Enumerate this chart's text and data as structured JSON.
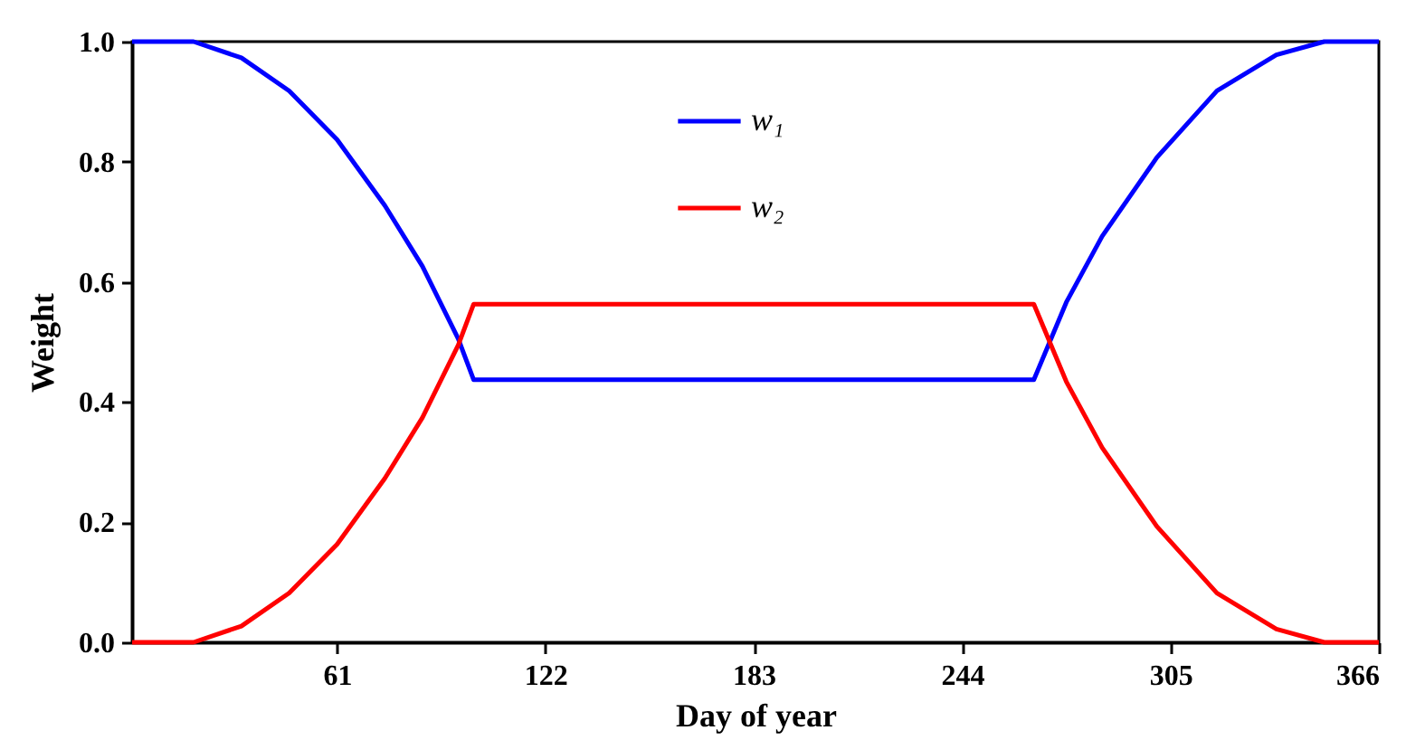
{
  "chart_data": {
    "type": "line",
    "xlabel": "Day of year",
    "ylabel": "Weight",
    "xlim": [
      1,
      366
    ],
    "xticks": [
      61,
      122,
      183,
      244,
      305,
      366
    ],
    "ylim": [
      0,
      1
    ],
    "yticks": [
      {
        "value": 0,
        "label": "0.0"
      },
      {
        "value": 0.2,
        "label": "0.2"
      },
      {
        "value": 0.4,
        "label": "0.4"
      },
      {
        "value": 0.6,
        "label": "0.6"
      },
      {
        "value": 0.8,
        "label": "0.8"
      },
      {
        "value": 1,
        "label": "1.0"
      }
    ],
    "grid": false,
    "legend": "top",
    "line_style": "solid",
    "marker": "none",
    "x": [
      1,
      19,
      33,
      47,
      61,
      75,
      86,
      96.5,
      101,
      265,
      274.5,
      285,
      301,
      318.6,
      336,
      350,
      366
    ],
    "series": [
      {
        "name": "w₁",
        "color": "#0000ff",
        "values": [
          1,
          1,
          0.973,
          0.918,
          0.837,
          0.727,
          0.626,
          0.505,
          0.437,
          0.437,
          0.566,
          0.676,
          0.807,
          0.918,
          0.978,
          1,
          1
        ]
      },
      {
        "name": "w₂",
        "color": "#ff0000",
        "values": [
          0,
          0,
          0.027,
          0.082,
          0.163,
          0.273,
          0.374,
          0.495,
          0.563,
          0.563,
          0.434,
          0.324,
          0.193,
          0.082,
          0.022,
          0,
          0
        ]
      }
    ]
  }
}
